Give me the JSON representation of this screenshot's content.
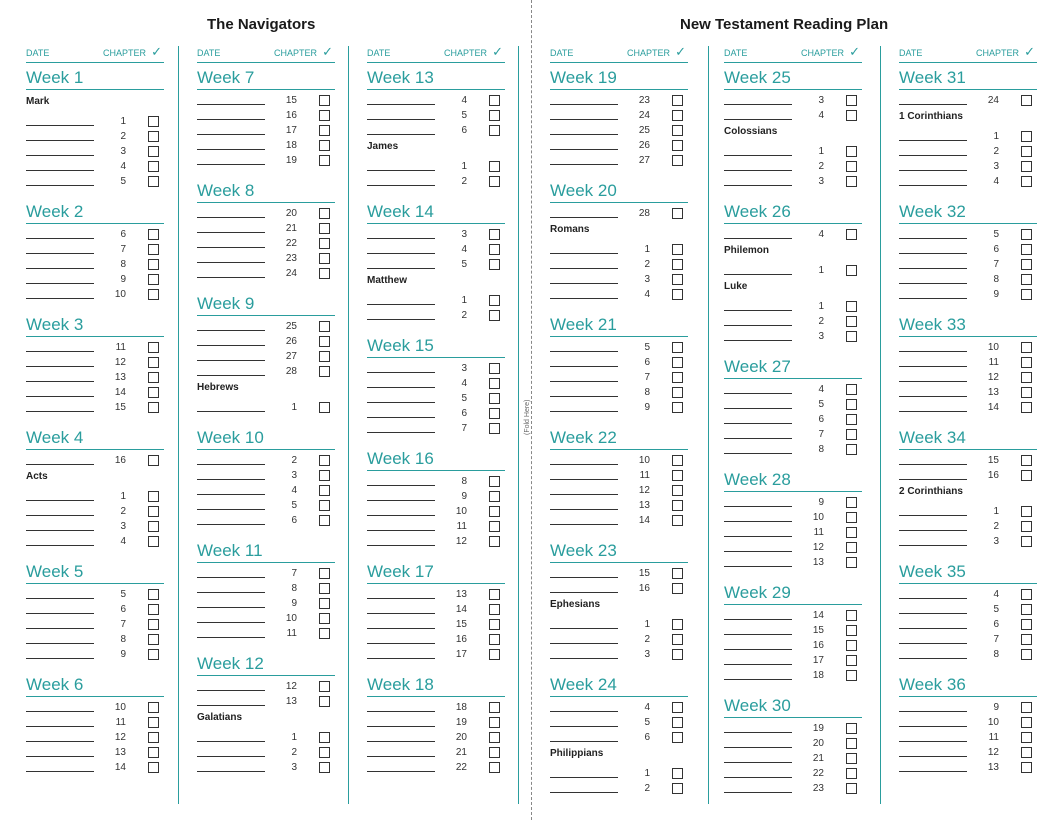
{
  "titles": {
    "left": "The Navigators",
    "right": "New Testament Reading Plan",
    "fold": "(Fold Here)"
  },
  "header": {
    "date": "DATE",
    "chapter": "CHAPTER",
    "check": "✓"
  },
  "colors": {
    "accent": "#2a9d9d",
    "text": "#222222"
  },
  "columns": [
    [
      {
        "week": "Week 1",
        "entries": [
          {
            "book": "Mark"
          },
          {
            "ch": "1"
          },
          {
            "ch": "2"
          },
          {
            "ch": "3"
          },
          {
            "ch": "4"
          },
          {
            "ch": "5"
          }
        ]
      },
      {
        "week": "Week 2",
        "entries": [
          {
            "ch": "6"
          },
          {
            "ch": "7"
          },
          {
            "ch": "8"
          },
          {
            "ch": "9"
          },
          {
            "ch": "10"
          }
        ]
      },
      {
        "week": "Week 3",
        "entries": [
          {
            "ch": "11"
          },
          {
            "ch": "12"
          },
          {
            "ch": "13"
          },
          {
            "ch": "14"
          },
          {
            "ch": "15"
          }
        ]
      },
      {
        "week": "Week 4",
        "entries": [
          {
            "ch": "16"
          },
          {
            "book": "Acts"
          },
          {
            "ch": "1"
          },
          {
            "ch": "2"
          },
          {
            "ch": "3"
          },
          {
            "ch": "4"
          }
        ]
      },
      {
        "week": "Week 5",
        "entries": [
          {
            "ch": "5"
          },
          {
            "ch": "6"
          },
          {
            "ch": "7"
          },
          {
            "ch": "8"
          },
          {
            "ch": "9"
          }
        ]
      },
      {
        "week": "Week 6",
        "entries": [
          {
            "ch": "10"
          },
          {
            "ch": "11"
          },
          {
            "ch": "12"
          },
          {
            "ch": "13"
          },
          {
            "ch": "14"
          }
        ]
      }
    ],
    [
      {
        "week": "Week 7",
        "entries": [
          {
            "ch": "15"
          },
          {
            "ch": "16"
          },
          {
            "ch": "17"
          },
          {
            "ch": "18"
          },
          {
            "ch": "19"
          }
        ]
      },
      {
        "week": "Week 8",
        "entries": [
          {
            "ch": "20"
          },
          {
            "ch": "21"
          },
          {
            "ch": "22"
          },
          {
            "ch": "23"
          },
          {
            "ch": "24"
          }
        ]
      },
      {
        "week": "Week 9",
        "entries": [
          {
            "ch": "25"
          },
          {
            "ch": "26"
          },
          {
            "ch": "27"
          },
          {
            "ch": "28"
          },
          {
            "book": "Hebrews"
          },
          {
            "ch": "1"
          }
        ]
      },
      {
        "week": "Week 10",
        "entries": [
          {
            "ch": "2"
          },
          {
            "ch": "3"
          },
          {
            "ch": "4"
          },
          {
            "ch": "5"
          },
          {
            "ch": "6"
          }
        ]
      },
      {
        "week": "Week 11",
        "entries": [
          {
            "ch": "7"
          },
          {
            "ch": "8"
          },
          {
            "ch": "9"
          },
          {
            "ch": "10"
          },
          {
            "ch": "11"
          }
        ]
      },
      {
        "week": "Week 12",
        "entries": [
          {
            "ch": "12"
          },
          {
            "ch": "13"
          },
          {
            "book": "Galatians"
          },
          {
            "ch": "1"
          },
          {
            "ch": "2"
          },
          {
            "ch": "3"
          }
        ]
      }
    ],
    [
      {
        "week": "Week 13",
        "entries": [
          {
            "ch": "4"
          },
          {
            "ch": "5"
          },
          {
            "ch": "6"
          },
          {
            "book": "James"
          },
          {
            "ch": "1"
          },
          {
            "ch": "2"
          }
        ]
      },
      {
        "week": "Week 14",
        "entries": [
          {
            "ch": "3"
          },
          {
            "ch": "4"
          },
          {
            "ch": "5"
          },
          {
            "book": "Matthew"
          },
          {
            "ch": "1"
          },
          {
            "ch": "2"
          }
        ]
      },
      {
        "week": "Week 15",
        "entries": [
          {
            "ch": "3"
          },
          {
            "ch": "4"
          },
          {
            "ch": "5"
          },
          {
            "ch": "6"
          },
          {
            "ch": "7"
          }
        ]
      },
      {
        "week": "Week 16",
        "entries": [
          {
            "ch": "8"
          },
          {
            "ch": "9"
          },
          {
            "ch": "10"
          },
          {
            "ch": "11"
          },
          {
            "ch": "12"
          }
        ]
      },
      {
        "week": "Week 17",
        "entries": [
          {
            "ch": "13"
          },
          {
            "ch": "14"
          },
          {
            "ch": "15"
          },
          {
            "ch": "16"
          },
          {
            "ch": "17"
          }
        ]
      },
      {
        "week": "Week 18",
        "entries": [
          {
            "ch": "18"
          },
          {
            "ch": "19"
          },
          {
            "ch": "20"
          },
          {
            "ch": "21"
          },
          {
            "ch": "22"
          }
        ]
      }
    ],
    [
      {
        "week": "Week 19",
        "entries": [
          {
            "ch": "23"
          },
          {
            "ch": "24"
          },
          {
            "ch": "25"
          },
          {
            "ch": "26"
          },
          {
            "ch": "27"
          }
        ]
      },
      {
        "week": "Week 20",
        "entries": [
          {
            "ch": "28"
          },
          {
            "book": "Romans"
          },
          {
            "ch": "1"
          },
          {
            "ch": "2"
          },
          {
            "ch": "3"
          },
          {
            "ch": "4"
          }
        ]
      },
      {
        "week": "Week 21",
        "entries": [
          {
            "ch": "5"
          },
          {
            "ch": "6"
          },
          {
            "ch": "7"
          },
          {
            "ch": "8"
          },
          {
            "ch": "9"
          }
        ]
      },
      {
        "week": "Week 22",
        "entries": [
          {
            "ch": "10"
          },
          {
            "ch": "11"
          },
          {
            "ch": "12"
          },
          {
            "ch": "13"
          },
          {
            "ch": "14"
          }
        ]
      },
      {
        "week": "Week 23",
        "entries": [
          {
            "ch": "15"
          },
          {
            "ch": "16"
          },
          {
            "book": "Ephesians"
          },
          {
            "ch": "1"
          },
          {
            "ch": "2"
          },
          {
            "ch": "3"
          }
        ]
      },
      {
        "week": "Week 24",
        "entries": [
          {
            "ch": "4"
          },
          {
            "ch": "5"
          },
          {
            "ch": "6"
          },
          {
            "book": "Philippians"
          },
          {
            "ch": "1"
          },
          {
            "ch": "2"
          }
        ]
      }
    ],
    [
      {
        "week": "Week 25",
        "entries": [
          {
            "ch": "3"
          },
          {
            "ch": "4"
          },
          {
            "book": "Colossians"
          },
          {
            "ch": "1"
          },
          {
            "ch": "2"
          },
          {
            "ch": "3"
          }
        ]
      },
      {
        "week": "Week 26",
        "entries": [
          {
            "ch": "4"
          },
          {
            "book": "Philemon"
          },
          {
            "ch": "1"
          },
          {
            "book": "Luke"
          },
          {
            "ch": "1"
          },
          {
            "ch": "2"
          },
          {
            "ch": "3"
          }
        ]
      },
      {
        "week": "Week 27",
        "entries": [
          {
            "ch": "4"
          },
          {
            "ch": "5"
          },
          {
            "ch": "6"
          },
          {
            "ch": "7"
          },
          {
            "ch": "8"
          }
        ]
      },
      {
        "week": "Week 28",
        "entries": [
          {
            "ch": "9"
          },
          {
            "ch": "10"
          },
          {
            "ch": "11"
          },
          {
            "ch": "12"
          },
          {
            "ch": "13"
          }
        ]
      },
      {
        "week": "Week 29",
        "entries": [
          {
            "ch": "14"
          },
          {
            "ch": "15"
          },
          {
            "ch": "16"
          },
          {
            "ch": "17"
          },
          {
            "ch": "18"
          }
        ]
      },
      {
        "week": "Week 30",
        "entries": [
          {
            "ch": "19"
          },
          {
            "ch": "20"
          },
          {
            "ch": "21"
          },
          {
            "ch": "22"
          },
          {
            "ch": "23"
          }
        ]
      }
    ],
    [
      {
        "week": "Week 31",
        "entries": [
          {
            "ch": "24"
          },
          {
            "book": "1 Corinthians"
          },
          {
            "ch": "1"
          },
          {
            "ch": "2"
          },
          {
            "ch": "3"
          },
          {
            "ch": "4"
          }
        ]
      },
      {
        "week": "Week 32",
        "entries": [
          {
            "ch": "5"
          },
          {
            "ch": "6"
          },
          {
            "ch": "7"
          },
          {
            "ch": "8"
          },
          {
            "ch": "9"
          }
        ]
      },
      {
        "week": "Week 33",
        "entries": [
          {
            "ch": "10"
          },
          {
            "ch": "11"
          },
          {
            "ch": "12"
          },
          {
            "ch": "13"
          },
          {
            "ch": "14"
          }
        ]
      },
      {
        "week": "Week 34",
        "entries": [
          {
            "ch": "15"
          },
          {
            "ch": "16"
          },
          {
            "book": "2 Corinthians"
          },
          {
            "ch": "1"
          },
          {
            "ch": "2"
          },
          {
            "ch": "3"
          }
        ]
      },
      {
        "week": "Week 35",
        "entries": [
          {
            "ch": "4"
          },
          {
            "ch": "5"
          },
          {
            "ch": "6"
          },
          {
            "ch": "7"
          },
          {
            "ch": "8"
          }
        ]
      },
      {
        "week": "Week 36",
        "entries": [
          {
            "ch": "9"
          },
          {
            "ch": "10"
          },
          {
            "ch": "11"
          },
          {
            "ch": "12"
          },
          {
            "ch": "13"
          }
        ]
      }
    ]
  ]
}
